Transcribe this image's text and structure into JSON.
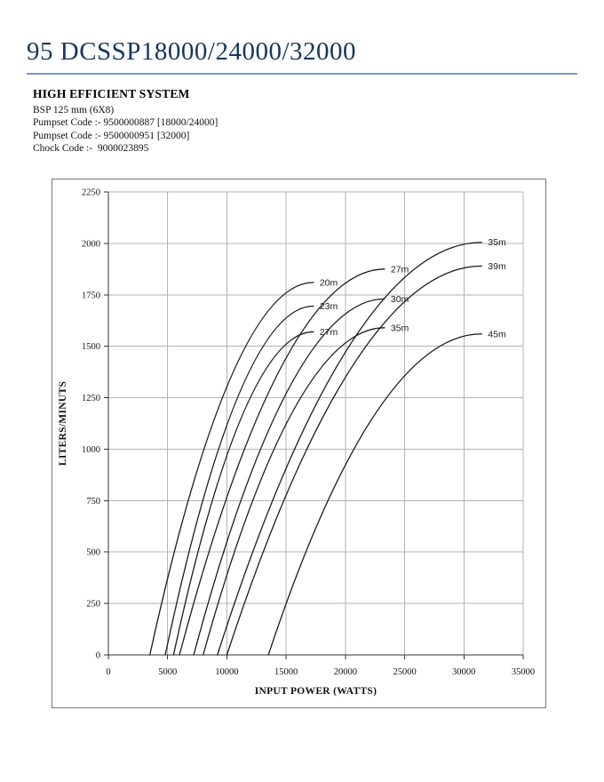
{
  "page": {
    "title": "95 DCSSP18000/24000/32000",
    "heading": "HIGH EFFICIENT SYSTEM",
    "spec_lines": [
      "BSP 125 mm (6X8)",
      "Pumpset Code :- 9500000887 [18000/24000]",
      "Pumpset Code :- 9500000951 [32000]",
      "Chock Code :-  9000023895"
    ],
    "accent_color": "#17365d",
    "rule_color": "#7396c8"
  },
  "chart_data": {
    "type": "line",
    "title": "",
    "xlabel": "INPUT POWER (WATTS)",
    "ylabel": "LITERS/MINUTS",
    "xlim": [
      0,
      35000
    ],
    "ylim": [
      0,
      2250
    ],
    "x_ticks": [
      0,
      5000,
      10000,
      15000,
      20000,
      25000,
      30000,
      35000
    ],
    "y_ticks": [
      0,
      250,
      500,
      750,
      1000,
      1250,
      1500,
      1750,
      2000,
      2250
    ],
    "grid": true,
    "legend_position": "curve-end-labels",
    "grid_color": "#b3b3b3",
    "axis_color": "#333333",
    "curve_color": "#1a1a1a",
    "series": [
      {
        "label": "20m",
        "points": [
          [
            3500,
            0
          ],
          [
            4490,
            250
          ],
          [
            5560,
            500
          ],
          [
            6740,
            750
          ],
          [
            8070,
            1000
          ],
          [
            9620,
            1250
          ],
          [
            11590,
            1500
          ],
          [
            14790,
            1750
          ],
          [
            17300,
            1810
          ]
        ]
      },
      {
        "label": "23m",
        "points": [
          [
            4800,
            0
          ],
          [
            5760,
            250
          ],
          [
            6800,
            500
          ],
          [
            7970,
            750
          ],
          [
            9300,
            1000
          ],
          [
            10900,
            1250
          ],
          [
            13060,
            1500
          ],
          [
            17300,
            1695
          ]
        ]
      },
      {
        "label": "27m",
        "points": [
          [
            5500,
            0
          ],
          [
            6480,
            250
          ],
          [
            7560,
            500
          ],
          [
            8770,
            750
          ],
          [
            10190,
            1000
          ],
          [
            11970,
            1250
          ],
          [
            14810,
            1500
          ],
          [
            17300,
            1570
          ]
        ]
      },
      {
        "label": "27m",
        "points": [
          [
            6000,
            0
          ],
          [
            7200,
            250
          ],
          [
            8490,
            500
          ],
          [
            9900,
            750
          ],
          [
            11480,
            1000
          ],
          [
            13310,
            1250
          ],
          [
            15560,
            1500
          ],
          [
            18830,
            1750
          ],
          [
            23300,
            1875
          ]
        ]
      },
      {
        "label": "30m",
        "points": [
          [
            7200,
            0
          ],
          [
            8410,
            250
          ],
          [
            9720,
            500
          ],
          [
            11180,
            750
          ],
          [
            12840,
            1000
          ],
          [
            14820,
            1250
          ],
          [
            17430,
            1500
          ],
          [
            23300,
            1730
          ]
        ]
      },
      {
        "label": "35m",
        "points": [
          [
            8000,
            0
          ],
          [
            9250,
            250
          ],
          [
            10630,
            500
          ],
          [
            12180,
            750
          ],
          [
            13980,
            1000
          ],
          [
            16230,
            1250
          ],
          [
            19660,
            1500
          ],
          [
            23300,
            1590
          ]
        ]
      },
      {
        "label": "35m",
        "points": [
          [
            9200,
            0
          ],
          [
            10640,
            250
          ],
          [
            12180,
            500
          ],
          [
            13860,
            750
          ],
          [
            15710,
            1000
          ],
          [
            17820,
            1250
          ],
          [
            20310,
            1500
          ],
          [
            23550,
            1750
          ],
          [
            31500,
            2005
          ]
        ]
      },
      {
        "label": "39m",
        "points": [
          [
            10000,
            0
          ],
          [
            11470,
            250
          ],
          [
            13060,
            500
          ],
          [
            14800,
            750
          ],
          [
            16750,
            1000
          ],
          [
            18990,
            1250
          ],
          [
            21730,
            1500
          ],
          [
            25650,
            1750
          ],
          [
            31500,
            1890
          ]
        ]
      },
      {
        "label": "45m",
        "points": [
          [
            13500,
            0
          ],
          [
            15000,
            250
          ],
          [
            16660,
            500
          ],
          [
            18530,
            750
          ],
          [
            20720,
            1000
          ],
          [
            23480,
            1250
          ],
          [
            27970,
            1500
          ],
          [
            31500,
            1560
          ]
        ]
      }
    ]
  }
}
